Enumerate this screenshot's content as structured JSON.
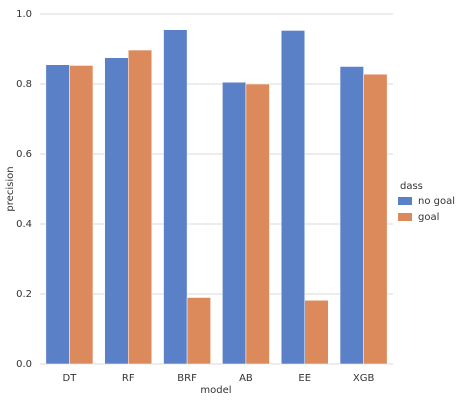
{
  "chart_data": {
    "type": "bar",
    "categories": [
      "DT",
      "RF",
      "BRF",
      "AB",
      "EE",
      "XGB"
    ],
    "series": [
      {
        "name": "no goal",
        "color": "#5a80c8",
        "values": [
          0.855,
          0.875,
          0.955,
          0.805,
          0.953,
          0.85
        ]
      },
      {
        "name": "goal",
        "color": "#dc8a5c",
        "values": [
          0.853,
          0.897,
          0.19,
          0.8,
          0.182,
          0.828
        ]
      }
    ],
    "ylim": [
      0,
      1
    ],
    "yticks": [
      {
        "value": 0,
        "label": "0.0"
      },
      0.2,
      0.4,
      0.6,
      0.8,
      {
        "value": 1,
        "label": "1.0"
      }
    ],
    "grid": true,
    "x_label": "model",
    "y_label": "precision",
    "legend_title": "dass",
    "legend_position": "right"
  }
}
